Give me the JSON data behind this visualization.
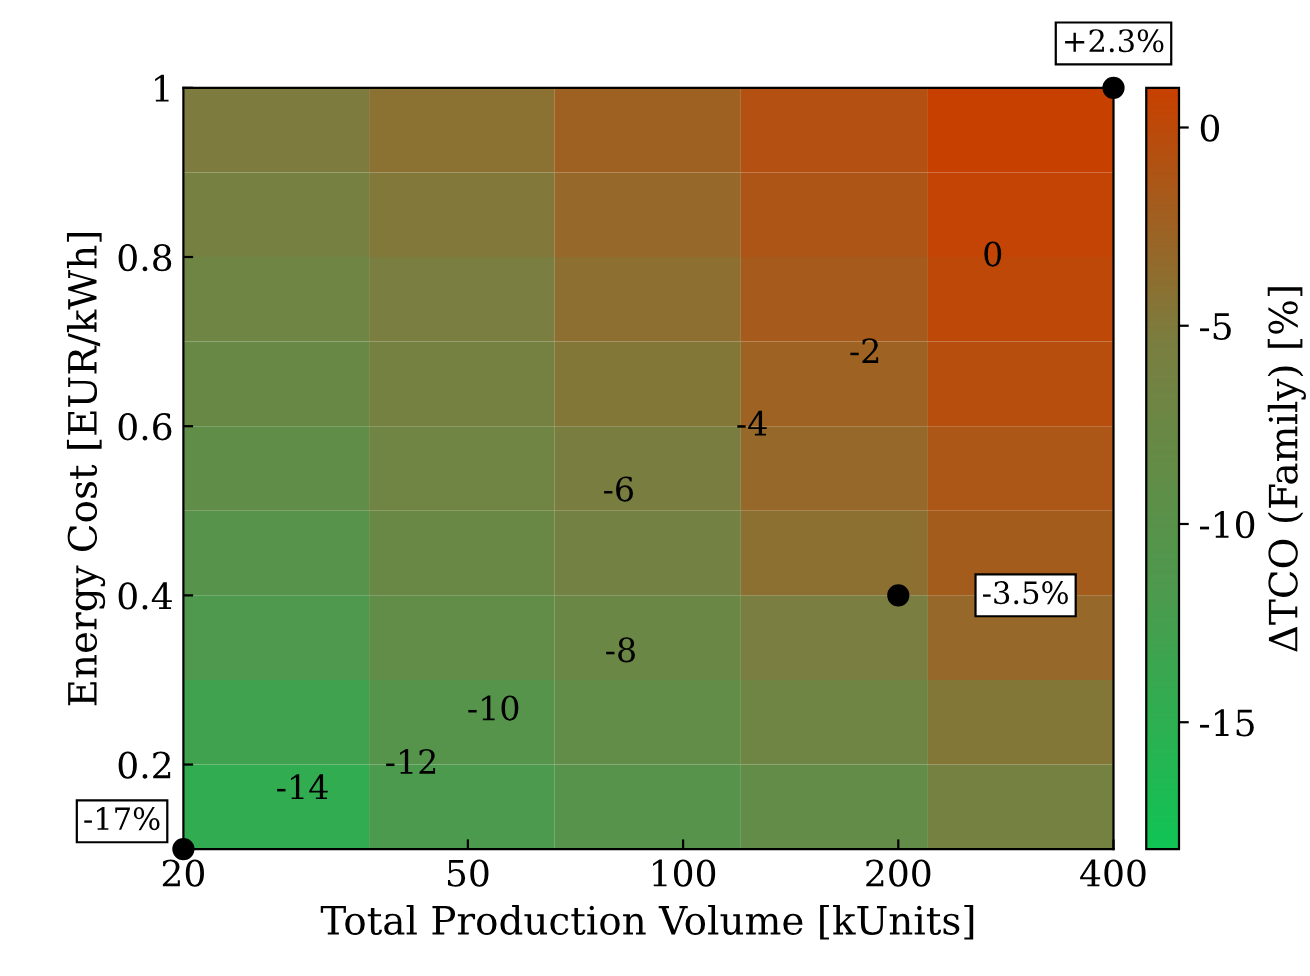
{
  "chart_data": {
    "type": "heatmap",
    "xlabel": "Total Production Volume [kUnits]",
    "ylabel": "Energy Cost [EUR/kWh]",
    "clabel": "ΔTCO (Family) [%]",
    "log": "x",
    "x": [
      27,
      49,
      89,
      163,
      297
    ],
    "y": [
      0.15,
      0.25,
      0.35,
      0.45,
      0.55,
      0.65,
      0.75,
      0.85,
      0.95
    ],
    "cells": [
      [
        -14.6,
        -11.8,
        -10.2,
        -8.7,
        -6.1
      ],
      [
        -13.1,
        -10.4,
        -8.9,
        -7.1,
        -4.7
      ],
      [
        -11.6,
        -8.9,
        -7.5,
        -5.4,
        -3.2
      ],
      [
        -10.2,
        -7.7,
        -6.4,
        -4.0,
        -2.0
      ],
      [
        -9.0,
        -6.8,
        -5.5,
        -3.2,
        -1.3
      ],
      [
        -7.9,
        -6.1,
        -4.7,
        -2.5,
        -0.5
      ],
      [
        -7.0,
        -5.4,
        -3.9,
        -1.8,
        0.1
      ],
      [
        -6.0,
        -4.8,
        -3.2,
        -1.2,
        0.6
      ],
      [
        -5.2,
        -4.1,
        -2.4,
        -0.7,
        1.0
      ]
    ],
    "xlim": [
      20,
      400
    ],
    "ylim": [
      0.1,
      1
    ],
    "xticks": [
      20,
      50,
      100,
      200,
      400
    ],
    "yticks": [
      0.2,
      0.4,
      0.6,
      0.8,
      1
    ],
    "clim": [
      -18.2,
      1
    ],
    "cticks": [
      -15,
      -10,
      -5,
      0
    ],
    "grid": false,
    "annotations": [
      {
        "text": "-17%",
        "x": 20,
        "y": 0.1
      },
      {
        "text": "-3.5%",
        "x": 200,
        "y": 0.4
      },
      {
        "text": "+2.3%",
        "x": 400,
        "y": 1
      },
      "-14",
      "-12",
      "-10",
      "-8",
      "-6",
      "-4",
      "-2",
      "0"
    ]
  }
}
